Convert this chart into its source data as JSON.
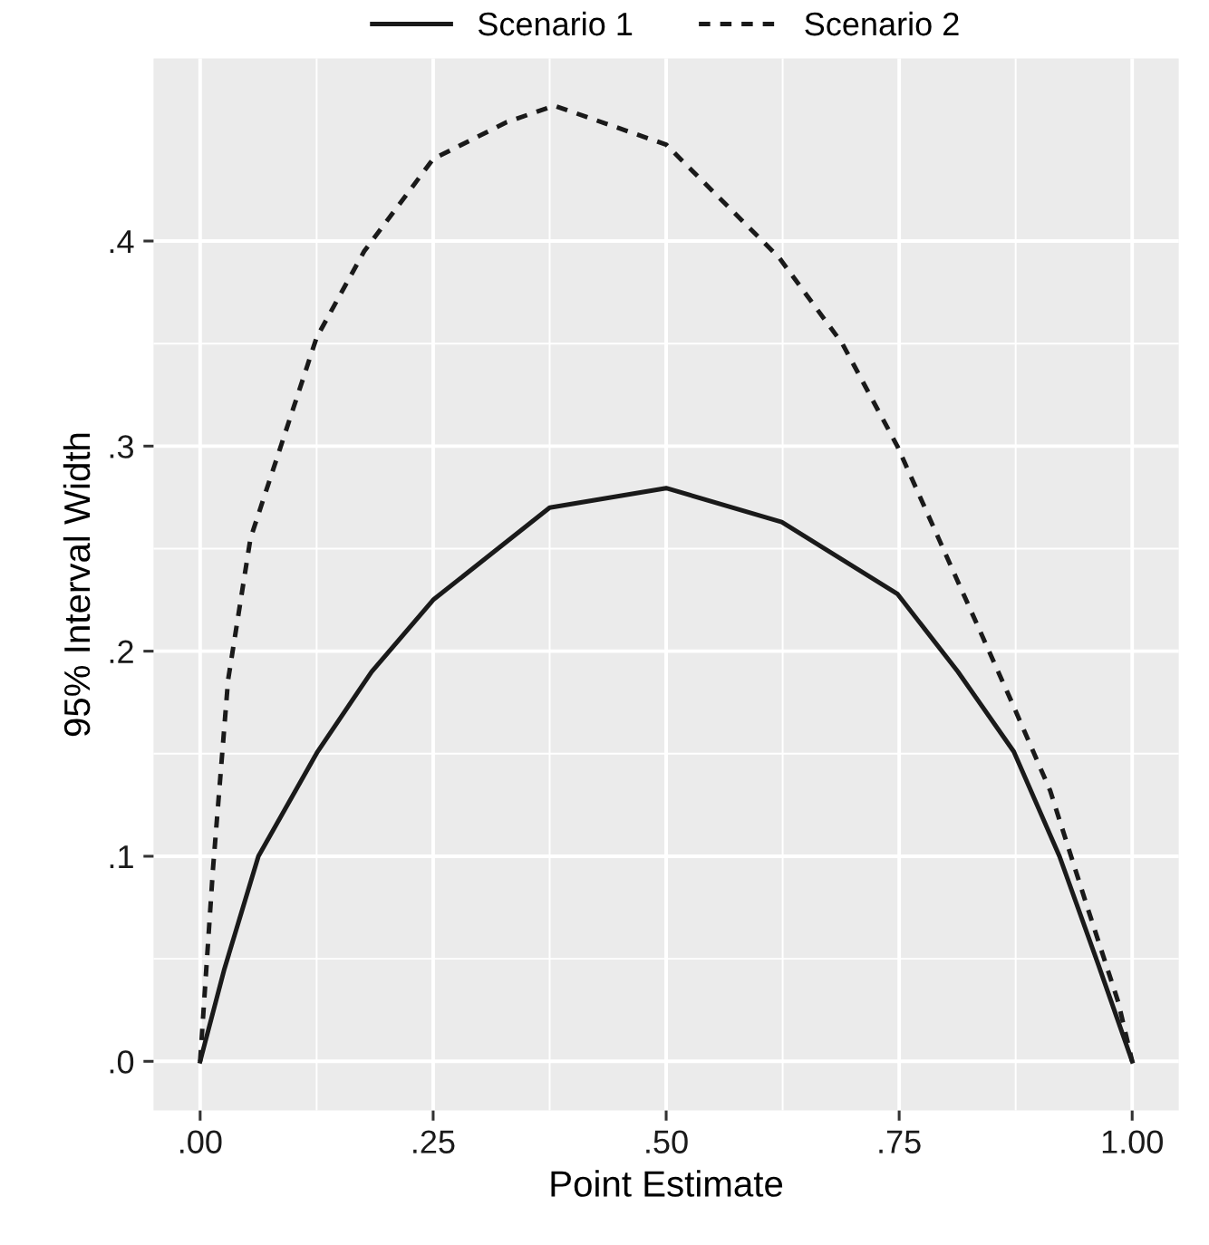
{
  "chart_data": {
    "type": "line",
    "xlabel": "Point Estimate",
    "ylabel": "95% Interval Width",
    "xlim": [
      -0.05,
      1.05
    ],
    "ylim": [
      -0.024,
      0.489
    ],
    "xticks": [
      {
        "value": 0,
        "label": ".00"
      },
      {
        "value": 0.25,
        "label": ".25"
      },
      {
        "value": 0.5,
        "label": ".50"
      },
      {
        "value": 0.75,
        "label": ".75"
      },
      {
        "value": 1,
        "label": "1.00"
      }
    ],
    "yticks": [
      {
        "value": 0,
        "label": ".0"
      },
      {
        "value": 0.1,
        "label": ".1"
      },
      {
        "value": 0.2,
        "label": ".2"
      },
      {
        "value": 0.3,
        "label": ".3"
      },
      {
        "value": 0.4,
        "label": ".4"
      }
    ],
    "grid": true,
    "legend": "top",
    "series": [
      {
        "name": "Scenario 1",
        "color": "#1a1a1a",
        "line_style": "solid",
        "x": [
          0,
          0.026,
          0.0625,
          0.126,
          0.184,
          0.25,
          0.375,
          0.5,
          0.624,
          0.748,
          0.813,
          0.873,
          0.922,
          0.963,
          1
        ],
        "values": [
          0,
          0.045,
          0.1,
          0.151,
          0.19,
          0.225,
          0.27,
          0.2795,
          0.263,
          0.228,
          0.19,
          0.151,
          0.1,
          0.048,
          0
        ]
      },
      {
        "name": "Scenario 2",
        "color": "#1a1a1a",
        "line_style": "dashed",
        "x": [
          0,
          0.0138,
          0.03,
          0.054,
          0.125,
          0.176,
          0.25,
          0.329,
          0.38,
          0.5,
          0.621,
          0.689,
          0.748,
          0.871,
          0.912,
          0.952,
          0.985,
          1
        ],
        "values": [
          0,
          0.094,
          0.186,
          0.255,
          0.353,
          0.395,
          0.44,
          0.458,
          0.466,
          0.447,
          0.392,
          0.35,
          0.3,
          0.175,
          0.132,
          0.075,
          0.029,
          0
        ]
      }
    ]
  }
}
